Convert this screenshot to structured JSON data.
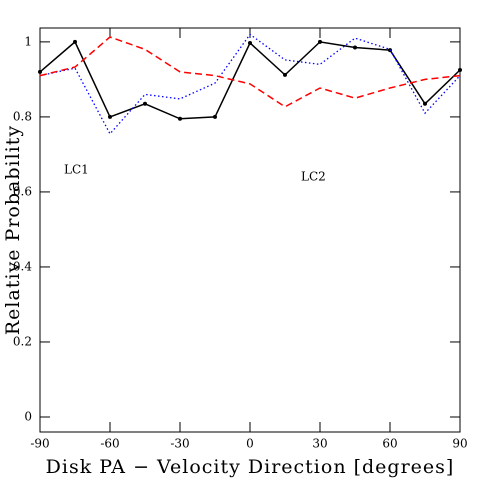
{
  "chart_data": {
    "type": "line",
    "x_label": "Disk PA − Velocity Direction [degrees]",
    "y_label": "Relative Probability",
    "x": [
      -90,
      -75,
      -60,
      -45,
      -30,
      -15,
      0,
      15,
      30,
      45,
      60,
      75,
      90
    ],
    "series": [
      {
        "color": "#000000",
        "style": "solid",
        "markers": true,
        "values": [
          0.92,
          1.0,
          0.8,
          0.835,
          0.795,
          0.8,
          0.997,
          0.912,
          1.0,
          0.985,
          0.978,
          0.835,
          0.925
        ]
      },
      {
        "name": "LC1",
        "color": "#0000ff",
        "style": "dotted",
        "markers": false,
        "values": [
          0.91,
          0.93,
          0.755,
          0.86,
          0.848,
          0.89,
          1.02,
          0.952,
          0.94,
          1.01,
          0.98,
          0.81,
          0.91
        ]
      },
      {
        "name": "LC2",
        "color": "#ff0000",
        "style": "dashed",
        "markers": false,
        "values": [
          0.91,
          0.933,
          1.013,
          0.98,
          0.92,
          0.91,
          0.888,
          0.827,
          0.877,
          0.85,
          0.877,
          0.9,
          0.91
        ]
      }
    ],
    "xlim": [
      -90,
      90
    ],
    "ylim": [
      -0.04,
      1.037
    ],
    "xticks": [
      -90,
      -60,
      -30,
      0,
      30,
      60,
      90
    ],
    "yticks": [
      0,
      0.2,
      0.4,
      0.6,
      0.8,
      1
    ],
    "grid": false
  }
}
